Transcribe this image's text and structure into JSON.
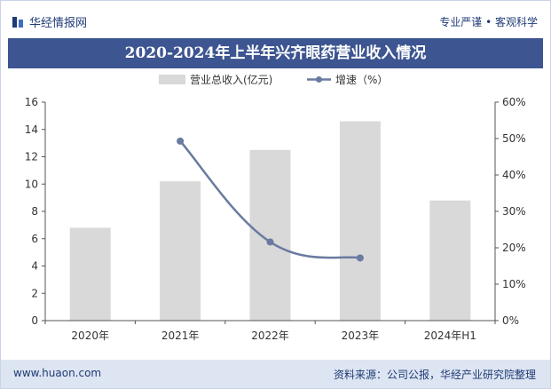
{
  "header": {
    "brand": "华经情报网",
    "tagline": "专业严谨 • 客观科学"
  },
  "footer": {
    "url": "www.huaon.com",
    "source": "资料来源：公司公报，华经产业研究院整理"
  },
  "colors": {
    "bar": "#d9d9d9",
    "line": "#6a7aa0",
    "title_bg": "#3d5590",
    "footer_bg": "#dde5f2"
  },
  "chart_data": {
    "type": "bar",
    "title": "2020-2024年上半年兴齐眼药营业收入情况",
    "categories": [
      "2020年",
      "2021年",
      "2022年",
      "2023年",
      "2024年H1"
    ],
    "series": [
      {
        "name": "营业总收入(亿元)",
        "type": "bar",
        "axis": "left",
        "values": [
          6.8,
          10.2,
          12.5,
          14.6,
          8.8
        ]
      },
      {
        "name": "增速（%）",
        "type": "line",
        "axis": "right",
        "values": [
          null,
          49.3,
          21.6,
          17.2,
          null
        ]
      }
    ],
    "y_left": {
      "min": 0,
      "max": 16,
      "step": 2,
      "ticks": [
        "0",
        "2",
        "4",
        "6",
        "8",
        "10",
        "12",
        "14",
        "16"
      ]
    },
    "y_right": {
      "min": 0,
      "max": 60,
      "step": 10,
      "ticks": [
        "0%",
        "10%",
        "20%",
        "30%",
        "40%",
        "50%",
        "60%"
      ]
    },
    "legend_position": "top-center",
    "grid": false
  }
}
